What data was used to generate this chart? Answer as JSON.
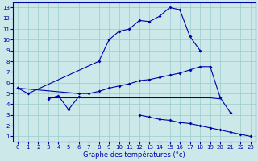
{
  "xlabel": "Graphe des températures (°c)",
  "bg_color": "#cce8e8",
  "line_color": "#0000aa",
  "grid_color": "#99cccc",
  "hours": [
    0,
    1,
    2,
    3,
    4,
    5,
    6,
    7,
    8,
    9,
    10,
    11,
    12,
    13,
    14,
    15,
    16,
    17,
    18,
    19,
    20,
    21,
    22,
    23
  ],
  "line1": [
    5.5,
    5.0,
    null,
    null,
    null,
    null,
    null,
    null,
    8.0,
    10.0,
    10.8,
    11.0,
    11.8,
    11.7,
    12.2,
    13.0,
    12.8,
    10.3,
    9.0,
    null,
    null,
    null,
    null,
    null
  ],
  "line2": [
    null,
    null,
    null,
    4.5,
    4.8,
    3.5,
    4.7,
    null,
    null,
    null,
    null,
    null,
    null,
    null,
    null,
    null,
    null,
    null,
    null,
    null,
    null,
    null,
    null,
    null
  ],
  "line3": [
    5.5,
    null,
    null,
    null,
    null,
    null,
    5.0,
    5.0,
    5.2,
    5.5,
    5.7,
    5.9,
    6.2,
    6.3,
    6.5,
    6.7,
    6.9,
    7.2,
    7.5,
    7.5,
    4.6,
    3.2,
    null,
    null
  ],
  "line4": [
    null,
    null,
    null,
    4.6,
    null,
    null,
    null,
    null,
    null,
    null,
    null,
    null,
    null,
    null,
    null,
    null,
    null,
    null,
    null,
    null,
    null,
    null,
    null,
    null
  ],
  "line5": [
    null,
    null,
    null,
    null,
    null,
    null,
    null,
    null,
    null,
    null,
    null,
    null,
    3.0,
    2.8,
    2.6,
    2.5,
    2.3,
    2.2,
    2.0,
    1.8,
    1.6,
    1.4,
    1.2,
    1.0
  ],
  "flat_line": [
    null,
    null,
    null,
    4.6,
    4.6,
    4.6,
    4.6,
    4.6,
    4.6,
    4.6,
    4.6,
    4.6,
    4.6,
    4.6,
    4.6,
    4.6,
    4.6,
    4.6,
    4.6,
    4.6,
    4.5,
    null,
    null,
    null
  ],
  "ylim": [
    1,
    13
  ],
  "xlim": [
    0,
    23
  ],
  "yticks": [
    1,
    2,
    3,
    4,
    5,
    6,
    7,
    8,
    9,
    10,
    11,
    12,
    13
  ],
  "xticks": [
    0,
    1,
    2,
    3,
    4,
    5,
    6,
    7,
    8,
    9,
    10,
    11,
    12,
    13,
    14,
    15,
    16,
    17,
    18,
    19,
    20,
    21,
    22,
    23
  ]
}
